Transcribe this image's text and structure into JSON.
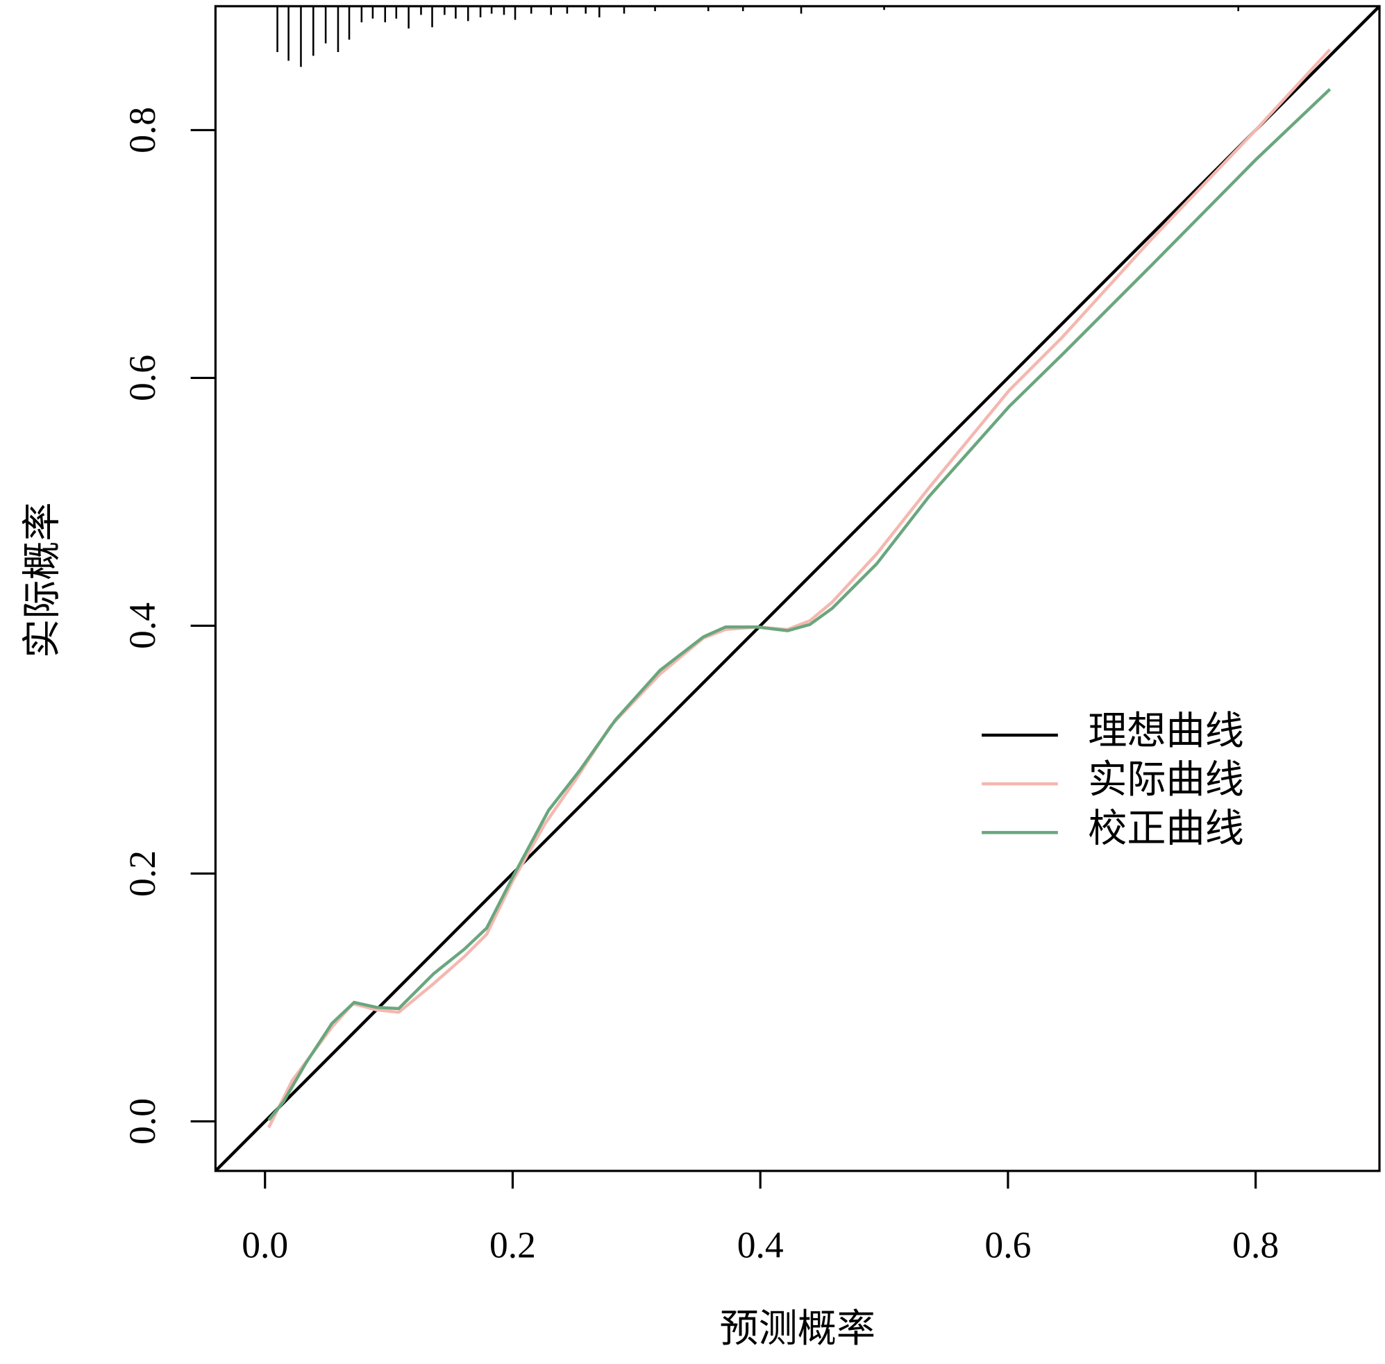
{
  "chart_data": {
    "type": "line",
    "xlabel": "预测概率",
    "ylabel": "实际概率",
    "xlim": [
      -0.04,
      0.9
    ],
    "ylim": [
      -0.04,
      0.9
    ],
    "xticks": [
      {
        "value": 0,
        "label": "0.0"
      },
      {
        "value": 0.2,
        "label": "0.2"
      },
      {
        "value": 0.4,
        "label": "0.4"
      },
      {
        "value": 0.6,
        "label": "0.6"
      },
      {
        "value": 0.8,
        "label": "0.8"
      }
    ],
    "yticks": [
      {
        "value": 0,
        "label": "0.0"
      },
      {
        "value": 0.2,
        "label": "0.2"
      },
      {
        "value": 0.4,
        "label": "0.4"
      },
      {
        "value": 0.6,
        "label": "0.6"
      },
      {
        "value": 0.8,
        "label": "0.8"
      }
    ],
    "legend_position": "right",
    "series": [
      {
        "name": "理想曲线",
        "color": "#000000",
        "x": [
          -0.04,
          0.9
        ],
        "values": [
          -0.04,
          0.9
        ]
      },
      {
        "name": "实际曲线",
        "color": "#f4b8b0",
        "x": [
          0.003,
          0.022,
          0.054,
          0.071,
          0.09,
          0.108,
          0.136,
          0.161,
          0.179,
          0.2,
          0.226,
          0.251,
          0.279,
          0.319,
          0.354,
          0.372,
          0.397,
          0.422,
          0.44,
          0.458,
          0.494,
          0.536,
          0.601,
          0.644,
          0.715,
          0.8,
          0.86
        ],
        "values": [
          -0.005,
          0.033,
          0.076,
          0.095,
          0.09,
          0.088,
          0.111,
          0.133,
          0.151,
          0.194,
          0.24,
          0.276,
          0.319,
          0.361,
          0.39,
          0.397,
          0.399,
          0.397,
          0.404,
          0.419,
          0.458,
          0.511,
          0.59,
          0.633,
          0.711,
          0.8,
          0.865
        ]
      },
      {
        "name": "校正曲线",
        "color": "#6aa67e",
        "x": [
          0.003,
          0.015,
          0.033,
          0.054,
          0.072,
          0.09,
          0.108,
          0.136,
          0.161,
          0.179,
          0.2,
          0.229,
          0.254,
          0.283,
          0.319,
          0.354,
          0.372,
          0.397,
          0.422,
          0.44,
          0.458,
          0.494,
          0.536,
          0.601,
          0.644,
          0.715,
          0.8,
          0.86
        ],
        "values": [
          0.001,
          0.016,
          0.047,
          0.079,
          0.096,
          0.092,
          0.091,
          0.119,
          0.139,
          0.156,
          0.197,
          0.251,
          0.283,
          0.324,
          0.364,
          0.391,
          0.399,
          0.399,
          0.396,
          0.401,
          0.414,
          0.45,
          0.504,
          0.577,
          0.619,
          0.69,
          0.776,
          0.833
        ]
      }
    ],
    "rug": {
      "x": [
        0.01,
        0.019,
        0.029,
        0.039,
        0.049,
        0.059,
        0.068,
        0.078,
        0.087,
        0.097,
        0.106,
        0.116,
        0.126,
        0.135,
        0.145,
        0.154,
        0.164,
        0.174,
        0.183,
        0.193,
        0.202,
        0.215,
        0.231,
        0.244,
        0.259,
        0.27,
        0.29,
        0.315,
        0.358,
        0.386,
        0.433,
        0.5,
        0.786
      ],
      "values": [
        0.037,
        0.044,
        0.049,
        0.04,
        0.03,
        0.037,
        0.027,
        0.013,
        0.01,
        0.013,
        0.01,
        0.018,
        0.007,
        0.017,
        0.007,
        0.01,
        0.012,
        0.009,
        0.006,
        0.007,
        0.011,
        0.006,
        0.007,
        0.006,
        0.006,
        0.009,
        0.006,
        0.004,
        0.004,
        0.004,
        0.006,
        0.003,
        0.004
      ]
    }
  }
}
